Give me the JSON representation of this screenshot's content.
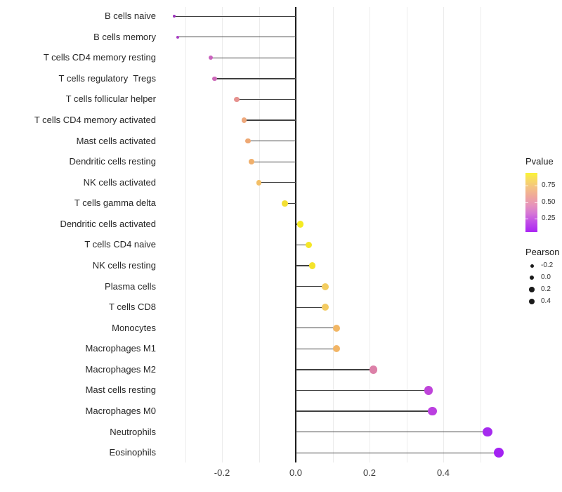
{
  "chart_data": {
    "type": "scatter",
    "subtype": "lollipop (horizontal dot-and-segment plot)",
    "title": "",
    "xlabel": "",
    "ylabel": "",
    "xlim": [
      -0.35,
      0.61
    ],
    "baseline": 0,
    "grid": "vertical light-gray gridlines every 0.1; solid black vertical line at 0",
    "x_ticks": [
      {
        "label": "-0.2",
        "value": -0.2
      },
      {
        "label": "0.0",
        "value": 0.0
      },
      {
        "label": "0.2",
        "value": 0.2
      },
      {
        "label": "0.4",
        "value": 0.4
      }
    ],
    "minor_grid_values": [
      -0.3,
      -0.2,
      -0.1,
      0.1,
      0.2,
      0.3,
      0.4,
      0.5
    ],
    "points": [
      {
        "label": "B cells naive",
        "pearson": -0.33,
        "color": "#9C33BC"
      },
      {
        "label": "B cells memory",
        "pearson": -0.32,
        "color": "#A73CC2"
      },
      {
        "label": "T cells CD4 memory resting",
        "pearson": -0.23,
        "color": "#CA62BE"
      },
      {
        "label": "T cells regulatory  Tregs",
        "pearson": -0.22,
        "color": "#CC68B8"
      },
      {
        "label": "T cells follicular helper",
        "pearson": -0.16,
        "color": "#E6928F"
      },
      {
        "label": "T cells CD4 memory activated",
        "pearson": -0.14,
        "color": "#EEA87C"
      },
      {
        "label": "Mast cells activated",
        "pearson": -0.13,
        "color": "#EEA873"
      },
      {
        "label": "Dendritic cells resting",
        "pearson": -0.12,
        "color": "#F0AF6B"
      },
      {
        "label": "NK cells activated",
        "pearson": -0.1,
        "color": "#F3BF67"
      },
      {
        "label": "T cells gamma delta",
        "pearson": -0.03,
        "color": "#F3DF33"
      },
      {
        "label": "Dendritic cells activated",
        "pearson": 0.013,
        "color": "#F5EB23"
      },
      {
        "label": "T cells CD4 naive",
        "pearson": 0.035,
        "color": "#F5E626"
      },
      {
        "label": "NK cells resting",
        "pearson": 0.045,
        "color": "#F4E32A"
      },
      {
        "label": "Plasma cells",
        "pearson": 0.08,
        "color": "#F3CD60"
      },
      {
        "label": "T cells CD8",
        "pearson": 0.08,
        "color": "#F3CB62"
      },
      {
        "label": "Monocytes",
        "pearson": 0.11,
        "color": "#F2B765"
      },
      {
        "label": "Macrophages M1",
        "pearson": 0.11,
        "color": "#F2B566"
      },
      {
        "label": "Macrophages M2",
        "pearson": 0.21,
        "color": "#DC80A8"
      },
      {
        "label": "Mast cells resting",
        "pearson": 0.36,
        "color": "#BF44DA"
      },
      {
        "label": "Macrophages M0",
        "pearson": 0.37,
        "color": "#BB3FE0"
      },
      {
        "label": "Neutrophils",
        "pearson": 0.52,
        "color": "#A62BEF"
      },
      {
        "label": "Eosinophils",
        "pearson": 0.55,
        "color": "#A322F2"
      }
    ],
    "legends": {
      "color": {
        "title": "Pvalue",
        "position": "right",
        "gradient_top_color": "#FAF335",
        "gradient_bottom_color": "#AA24F3",
        "ticks": [
          {
            "label": "0.75",
            "frac_from_top": 0.214
          },
          {
            "label": "0.50",
            "frac_from_top": 0.5
          },
          {
            "label": "0.25",
            "frac_from_top": 0.774
          }
        ]
      },
      "size": {
        "title": "Pearson",
        "position": "right",
        "entries": [
          {
            "label": "-0.2",
            "radius": 2.5
          },
          {
            "label": "0.0",
            "radius": 3.3
          },
          {
            "label": "0.2",
            "radius": 3.8
          },
          {
            "label": "0.4",
            "radius": 4.2
          }
        ]
      }
    }
  }
}
